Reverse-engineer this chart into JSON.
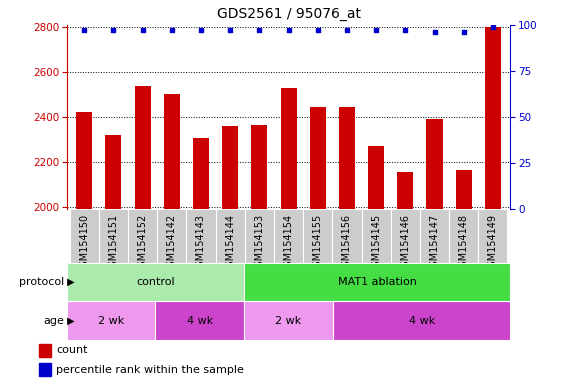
{
  "title": "GDS2561 / 95076_at",
  "samples": [
    "GSM154150",
    "GSM154151",
    "GSM154152",
    "GSM154142",
    "GSM154143",
    "GSM154144",
    "GSM154153",
    "GSM154154",
    "GSM154155",
    "GSM154156",
    "GSM154145",
    "GSM154146",
    "GSM154147",
    "GSM154148",
    "GSM154149"
  ],
  "counts": [
    2425,
    2320,
    2540,
    2505,
    2305,
    2360,
    2365,
    2530,
    2445,
    2445,
    2270,
    2155,
    2390,
    2165,
    2800
  ],
  "percentile_ranks": [
    97,
    97,
    97,
    97,
    97,
    97,
    97,
    97,
    97,
    97,
    97,
    97,
    96,
    96,
    99
  ],
  "ylim_left": [
    1990,
    2810
  ],
  "ylim_right": [
    0,
    100
  ],
  "yticks_left": [
    2000,
    2200,
    2400,
    2600,
    2800
  ],
  "yticks_right": [
    0,
    25,
    50,
    75,
    100
  ],
  "bar_color": "#cc0000",
  "dot_color": "#0000cc",
  "bar_width": 0.55,
  "protocol_groups": [
    {
      "label": "control",
      "start": 0,
      "end": 6,
      "color": "#aaeaaa"
    },
    {
      "label": "MAT1 ablation",
      "start": 6,
      "end": 15,
      "color": "#44dd44"
    }
  ],
  "age_groups": [
    {
      "label": "2 wk",
      "start": 0,
      "end": 3,
      "color": "#ee99ee"
    },
    {
      "label": "4 wk",
      "start": 3,
      "end": 6,
      "color": "#cc44cc"
    },
    {
      "label": "2 wk",
      "start": 6,
      "end": 9,
      "color": "#ee99ee"
    },
    {
      "label": "4 wk",
      "start": 9,
      "end": 15,
      "color": "#cc44cc"
    }
  ],
  "protocol_label": "protocol",
  "age_label": "age",
  "legend_count_label": "count",
  "legend_pct_label": "percentile rank within the sample",
  "title_fontsize": 10,
  "tick_label_fontsize": 7,
  "axis_tick_fontsize": 7.5,
  "xtick_bg": "#cccccc",
  "plot_bg": "#ffffff"
}
